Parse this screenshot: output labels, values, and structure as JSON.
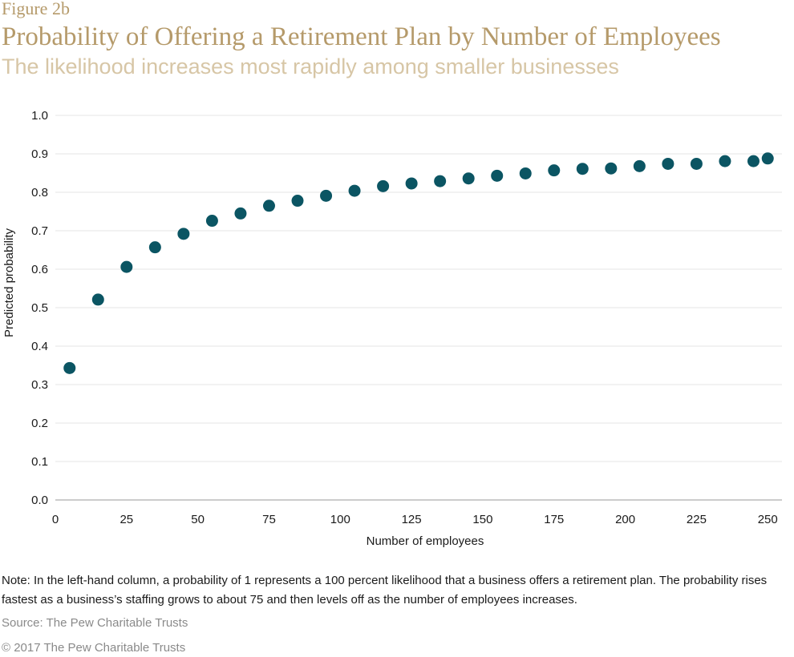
{
  "header": {
    "figure_label": "Figure 2b",
    "title": "Probability of Offering a Retirement Plan by Number of Employees",
    "subtitle": "The likelihood increases most rapidly among smaller businesses"
  },
  "chart_data": {
    "type": "scatter",
    "xlabel": "Number of employees",
    "ylabel": "Predicted probability",
    "xlim": [
      0,
      255
    ],
    "ylim": [
      0,
      1.0
    ],
    "xticks": [
      "0",
      "25",
      "50",
      "75",
      "100",
      "125",
      "150",
      "175",
      "200",
      "225",
      "250"
    ],
    "yticks": [
      "0.0",
      "0.1",
      "0.2",
      "0.3",
      "0.4",
      "0.5",
      "0.6",
      "0.7",
      "0.8",
      "0.9",
      "1.0"
    ],
    "grid": "horizontal",
    "marker_color": "#0b5563",
    "x": [
      5,
      15,
      25,
      35,
      45,
      55,
      65,
      75,
      85,
      95,
      105,
      115,
      125,
      135,
      145,
      155,
      165,
      175,
      185,
      195,
      205,
      215,
      225,
      235,
      245,
      250
    ],
    "y": [
      0.343,
      0.521,
      0.606,
      0.657,
      0.692,
      0.726,
      0.745,
      0.765,
      0.778,
      0.791,
      0.804,
      0.816,
      0.823,
      0.829,
      0.836,
      0.843,
      0.849,
      0.857,
      0.861,
      0.862,
      0.868,
      0.874,
      0.874,
      0.881,
      0.881,
      0.888
    ]
  },
  "footer": {
    "note": "Note: In the left-hand column, a probability of 1 represents a 100 percent likelihood that a business offers a retirement plan. The probability rises fastest as a business’s staffing grows to about 75 and then levels off as the number of employees increases.",
    "source": "Source: The Pew Charitable Trusts",
    "copyright": "© 2017 The Pew Charitable Trusts"
  }
}
